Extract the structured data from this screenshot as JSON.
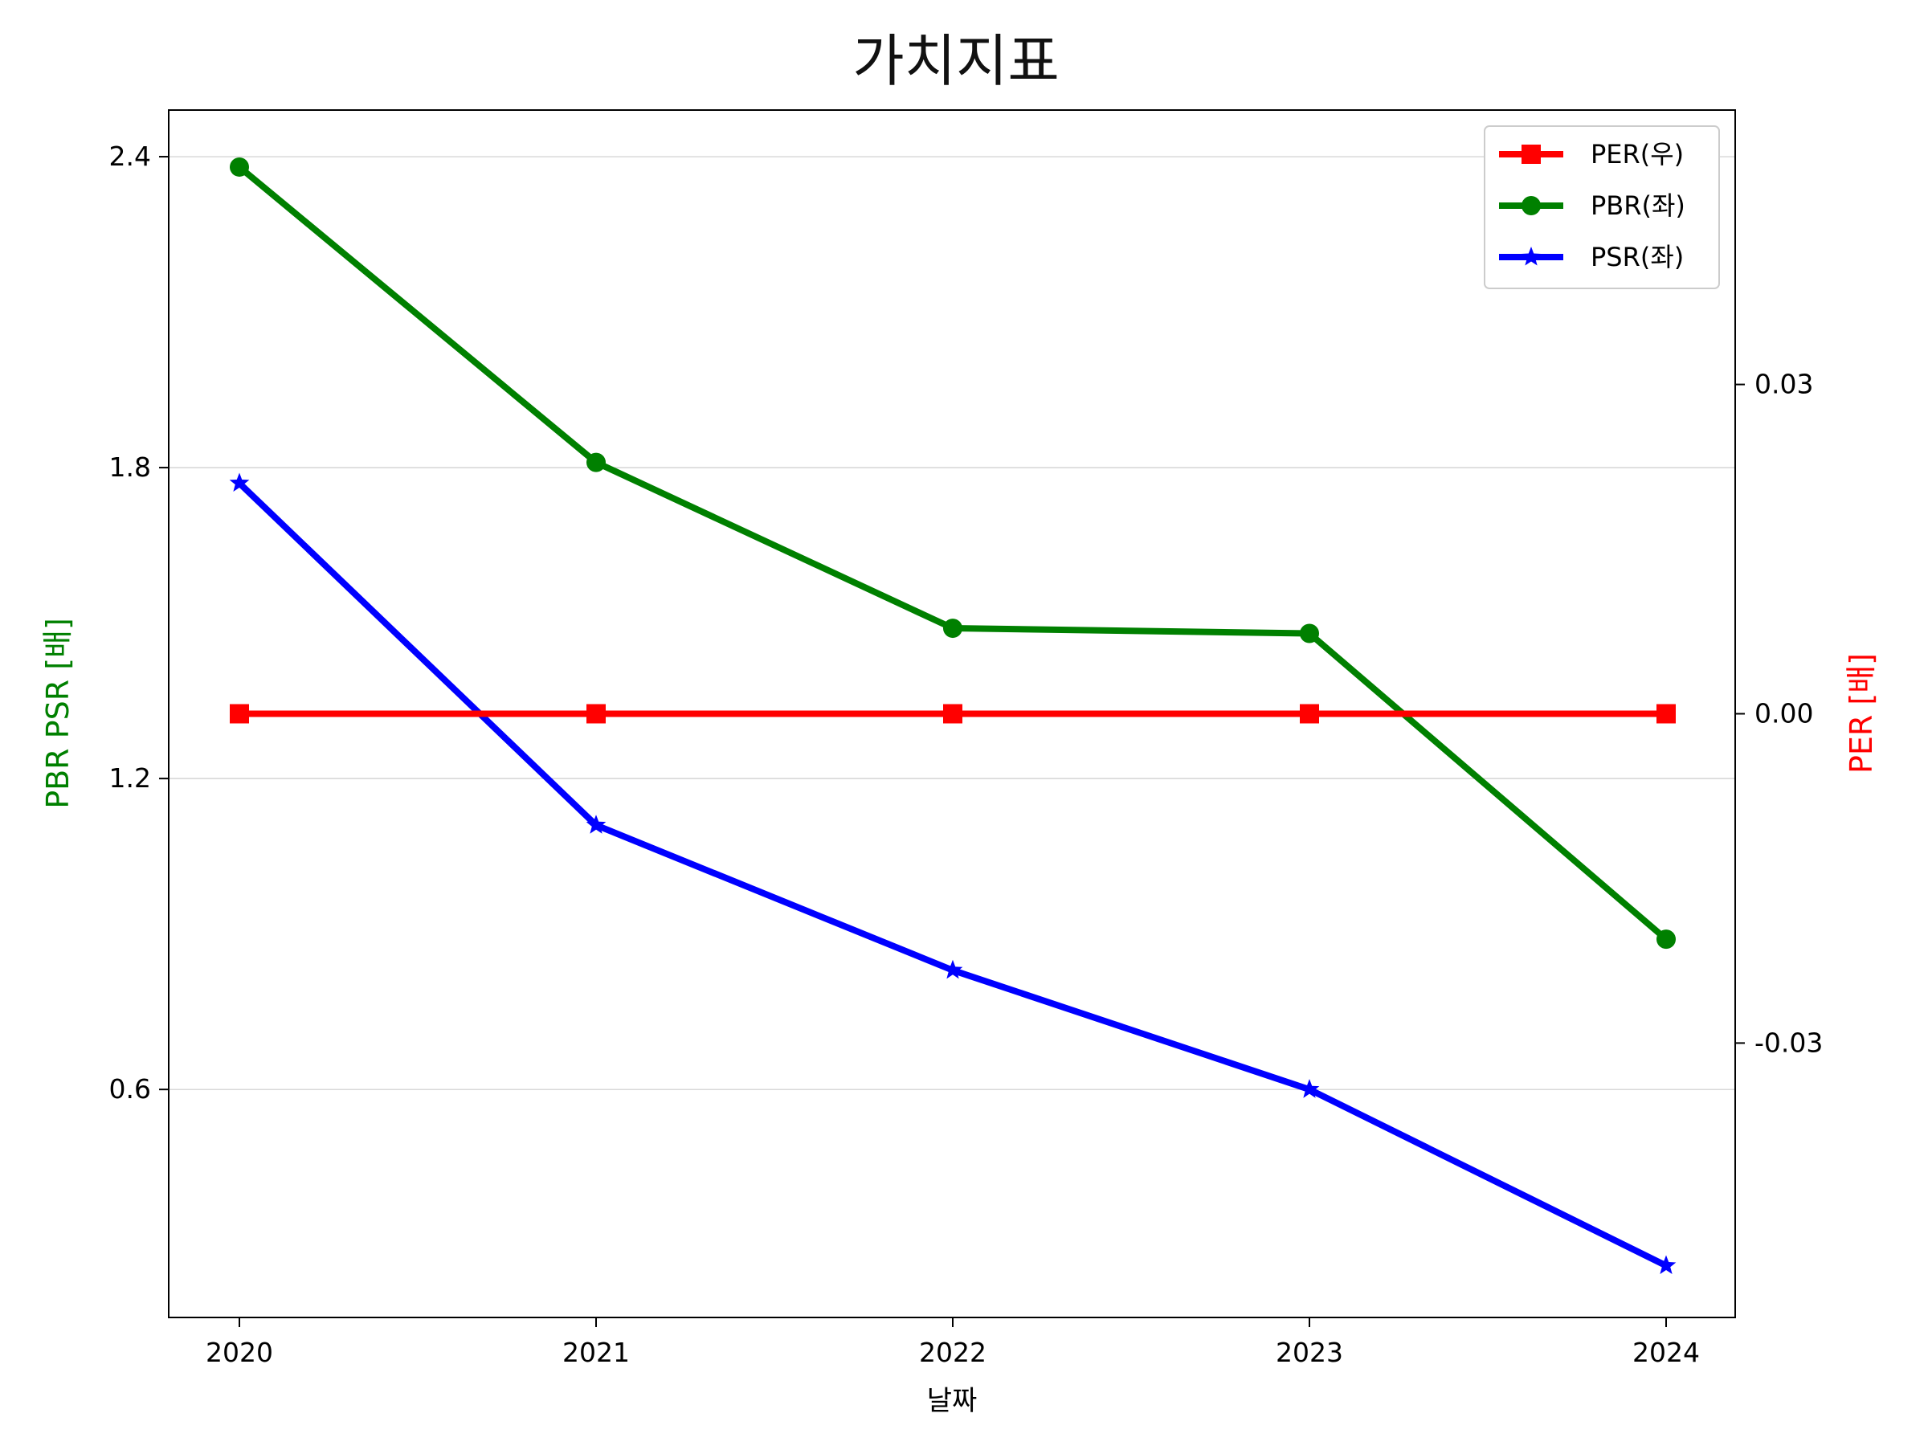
{
  "chart_data": {
    "type": "line",
    "title": "가치지표",
    "xlabel": "날짜",
    "ylabel_left": "PBR PSR [배]",
    "ylabel_right": "PER [배]",
    "x": [
      "2020",
      "2021",
      "2022",
      "2023",
      "2024"
    ],
    "left_axis": {
      "ticks": [
        "0.6",
        "1.8",
        "2.4",
        "1.2"
      ],
      "tick_values": [
        0.6,
        1.2,
        1.8,
        2.4
      ],
      "tick_labels": [
        "0.6",
        "1.2",
        "1.8",
        "2.4"
      ],
      "ylim": [
        0.16,
        2.49
      ]
    },
    "right_axis": {
      "tick_values": [
        -0.03,
        0.0,
        0.03
      ],
      "tick_labels": [
        "-0.03",
        "0.00",
        "0.03"
      ],
      "ylim": [
        -0.055,
        0.055
      ]
    },
    "grid": "horizontal, left axis",
    "legend_position": "top-right",
    "series": [
      {
        "name": "PER(우)",
        "axis": "right",
        "marker": "square",
        "color": "#ff0000",
        "values": [
          0,
          0,
          0,
          0,
          0
        ]
      },
      {
        "name": "PBR(좌)",
        "axis": "left",
        "marker": "circle",
        "color": "#008000",
        "values": [
          2.38,
          1.81,
          1.49,
          1.48,
          0.89
        ]
      },
      {
        "name": "PSR(좌)",
        "axis": "left",
        "marker": "star",
        "color": "#0000ff",
        "values": [
          1.77,
          1.11,
          0.83,
          0.6,
          0.26
        ]
      }
    ]
  }
}
